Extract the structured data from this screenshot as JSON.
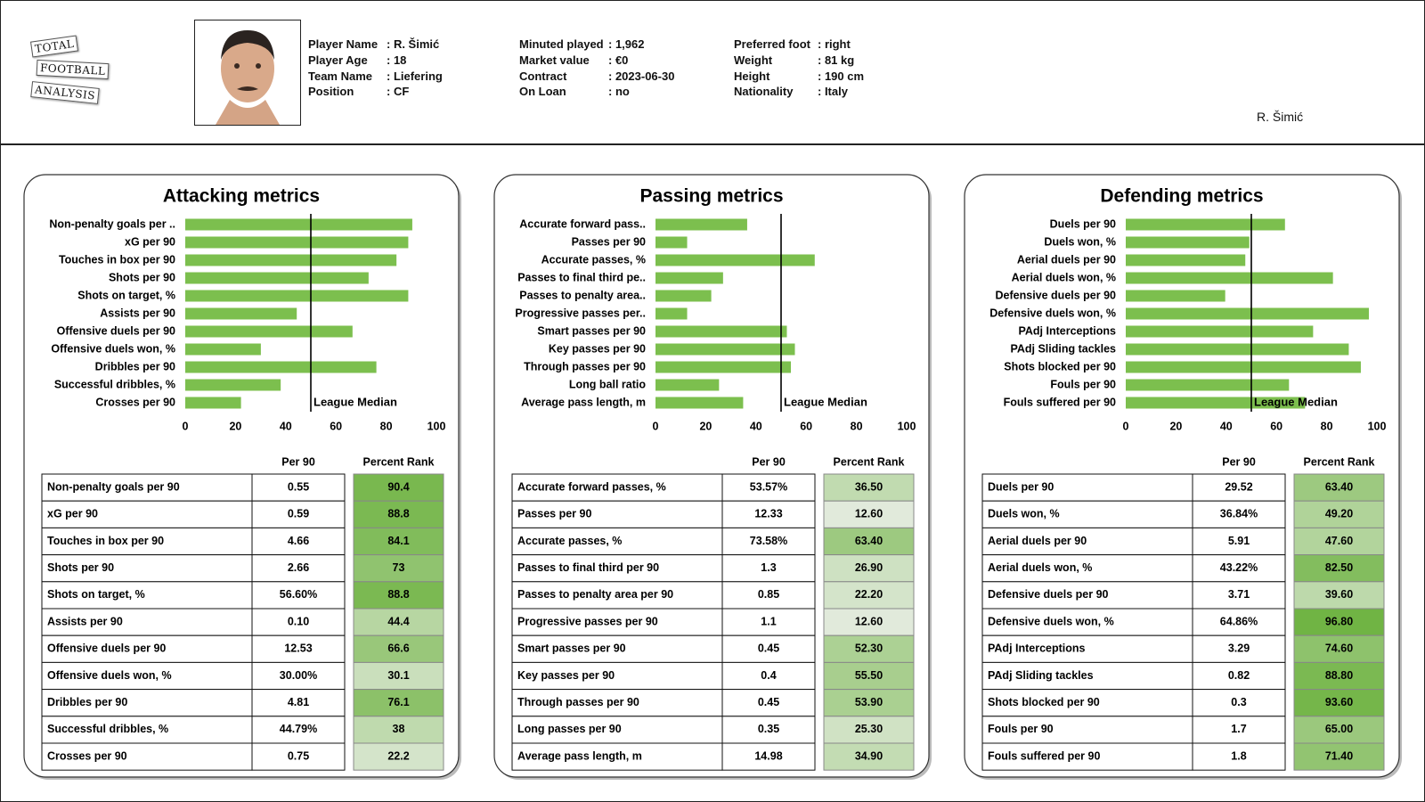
{
  "header": {
    "logo": [
      "Total",
      "Football",
      "Analysis"
    ],
    "info": [
      [
        {
          "label": "Player Name",
          "value": ": R. Šimić"
        },
        {
          "label": "Player Age",
          "value": ": 18"
        },
        {
          "label": "Team Name",
          "value": ": Liefering"
        },
        {
          "label": "Position",
          "value": ": CF"
        }
      ],
      [
        {
          "label": "Minuted played",
          "value": ": 1,962"
        },
        {
          "label": "Market value",
          "value": ": €0"
        },
        {
          "label": "Contract",
          "value": ": 2023-06-30"
        },
        {
          "label": "On Loan",
          "value": ": no"
        }
      ],
      [
        {
          "label": "Preferred foot",
          "value": ": right"
        },
        {
          "label": "Weight",
          "value": ": 81 kg"
        },
        {
          "label": "Height",
          "value": ": 190 cm"
        },
        {
          "label": "Nationality",
          "value": ": Italy"
        }
      ]
    ],
    "caption": "R. Šimić"
  },
  "chart_data": [
    {
      "type": "bar",
      "orientation": "horizontal",
      "title": "Attacking metrics",
      "categories": [
        "Non-penalty goals per ..",
        "xG per 90",
        "Touches in box per 90",
        "Shots per 90",
        "Shots on target, %",
        "Assists per 90",
        "Offensive duels per 90",
        "Offensive duels won, %",
        "Dribbles per 90",
        "Successful dribbles, %",
        "Crosses per 90"
      ],
      "values": [
        90.4,
        88.8,
        84.1,
        73,
        88.8,
        44.4,
        66.6,
        30.1,
        76.1,
        38,
        22.2
      ],
      "color": "#7cbf4e",
      "xlim": [
        0,
        100
      ],
      "xticks": [
        0,
        20,
        40,
        60,
        80,
        100
      ],
      "median": 50,
      "median_label": "League Median"
    },
    {
      "type": "bar",
      "orientation": "horizontal",
      "title": "Passing metrics",
      "categories": [
        "Accurate forward pass..",
        "Passes per 90",
        "Accurate passes, %",
        "Passes to final third pe..",
        "Passes to penalty area..",
        "Progressive passes per..",
        "Smart passes per 90",
        "Key passes per 90",
        "Through passes per 90",
        "Long ball ratio",
        "Average pass length, m"
      ],
      "values": [
        36.5,
        12.6,
        63.4,
        26.9,
        22.2,
        12.6,
        52.3,
        55.5,
        53.9,
        25.3,
        34.9
      ],
      "color": "#7cbf4e",
      "xlim": [
        0,
        100
      ],
      "xticks": [
        0,
        20,
        40,
        60,
        80,
        100
      ],
      "median": 50,
      "median_label": "League Median"
    },
    {
      "type": "bar",
      "orientation": "horizontal",
      "title": "Defending metrics",
      "categories": [
        "Duels per 90",
        "Duels won, %",
        "Aerial duels per 90",
        "Aerial duels won, %",
        "Defensive duels per 90",
        "Defensive duels won, %",
        "PAdj Interceptions",
        "PAdj Sliding tackles",
        "Shots blocked per 90",
        "Fouls per 90",
        "Fouls suffered per 90"
      ],
      "values": [
        63.4,
        49.2,
        47.6,
        82.5,
        39.6,
        96.8,
        74.6,
        88.8,
        93.6,
        65,
        71.4
      ],
      "color": "#7cbf4e",
      "xlim": [
        0,
        100
      ],
      "xticks": [
        0,
        20,
        40,
        60,
        80,
        100
      ],
      "median": 50,
      "median_label": "League Median"
    }
  ],
  "tables": [
    {
      "columns": [
        "Per 90",
        "Percent Rank"
      ],
      "rows": [
        [
          "Non-penalty goals per 90",
          "0.55",
          "90.4"
        ],
        [
          "xG per 90",
          "0.59",
          "88.8"
        ],
        [
          "Touches in box per 90",
          "4.66",
          "84.1"
        ],
        [
          "Shots per 90",
          "2.66",
          "73"
        ],
        [
          "Shots on target, %",
          "56.60%",
          "88.8"
        ],
        [
          "Assists per 90",
          "0.10",
          "44.4"
        ],
        [
          "Offensive duels per 90",
          "12.53",
          "66.6"
        ],
        [
          "Offensive duels won, %",
          "30.00%",
          "30.1"
        ],
        [
          "Dribbles per 90",
          "4.81",
          "76.1"
        ],
        [
          "Successful dribbles, %",
          "44.79%",
          "38"
        ],
        [
          "Crosses per 90",
          "0.75",
          "22.2"
        ]
      ]
    },
    {
      "columns": [
        "Per 90",
        "Percent Rank"
      ],
      "rows": [
        [
          "Accurate forward passes, %",
          "53.57%",
          "36.50"
        ],
        [
          "Passes per 90",
          "12.33",
          "12.60"
        ],
        [
          "Accurate passes, %",
          "73.58%",
          "63.40"
        ],
        [
          "Passes to final third per 90",
          "1.3",
          "26.90"
        ],
        [
          "Passes to penalty area per 90",
          "0.85",
          "22.20"
        ],
        [
          "Progressive passes per 90",
          "1.1",
          "12.60"
        ],
        [
          "Smart passes per 90",
          "0.45",
          "52.30"
        ],
        [
          "Key passes per 90",
          "0.4",
          "55.50"
        ],
        [
          "Through passes per 90",
          "0.45",
          "53.90"
        ],
        [
          "Long passes per 90",
          "0.35",
          "25.30"
        ],
        [
          "Average pass length, m",
          "14.98",
          "34.90"
        ]
      ]
    },
    {
      "columns": [
        "Per 90",
        "Percent Rank"
      ],
      "rows": [
        [
          "Duels per 90",
          "29.52",
          "63.40"
        ],
        [
          "Duels won, %",
          "36.84%",
          "49.20"
        ],
        [
          "Aerial duels per 90",
          "5.91",
          "47.60"
        ],
        [
          "Aerial duels won, %",
          "43.22%",
          "82.50"
        ],
        [
          "Defensive duels per 90",
          "3.71",
          "39.60"
        ],
        [
          "Defensive duels won, %",
          "64.86%",
          "96.80"
        ],
        [
          "PAdj Interceptions",
          "3.29",
          "74.60"
        ],
        [
          "PAdj Sliding tackles",
          "0.82",
          "88.80"
        ],
        [
          "Shots blocked per 90",
          "0.3",
          "93.60"
        ],
        [
          "Fouls per 90",
          "1.7",
          "65.00"
        ],
        [
          "Fouls suffered per 90",
          "1.8",
          "71.40"
        ]
      ]
    }
  ]
}
